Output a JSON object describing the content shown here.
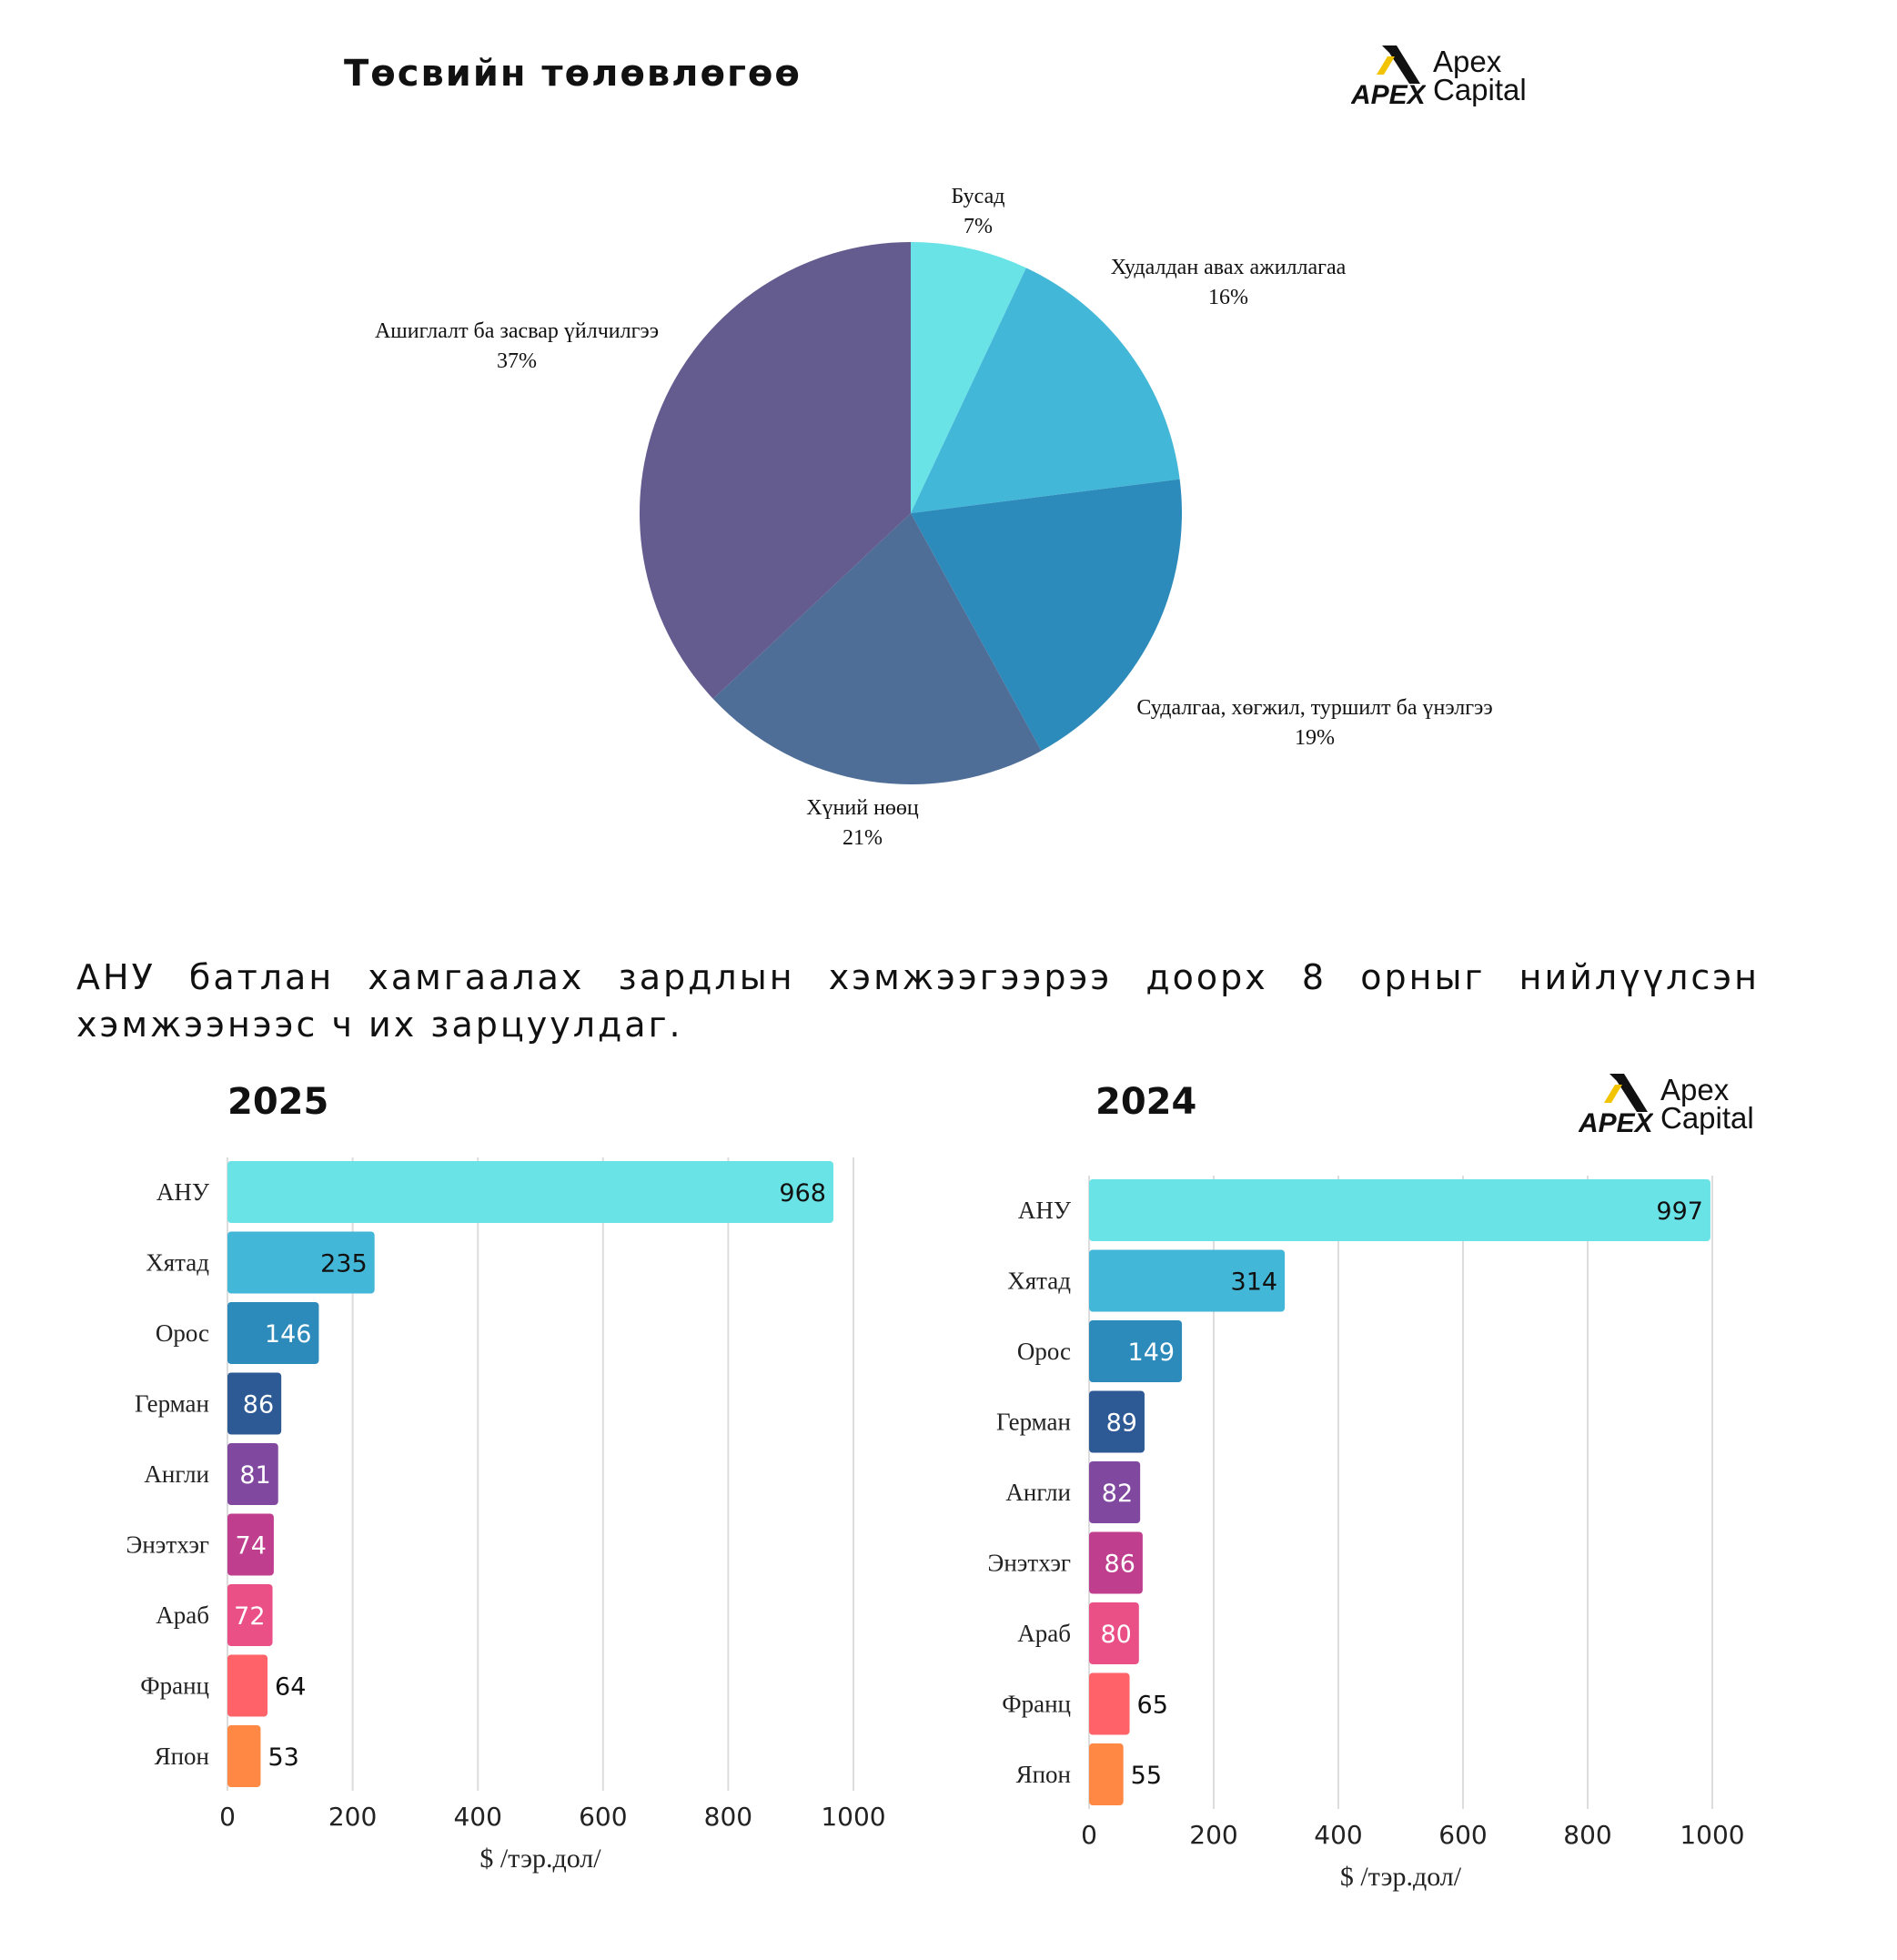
{
  "pie": {
    "title": "Төсвийн төлөвлөгөө"
  },
  "logo": {
    "line1": "Apex",
    "line2": "Capital",
    "accent": "#f2c400"
  },
  "statement": "АНУ батлан хамгаалах зардлын хэмжээгээрээ доорх 8 орныг нийлүүлсэн хэмжээнээс ч их зарцуулдаг.",
  "chart_data": [
    {
      "type": "pie",
      "title": "Төсвийн төлөвлөгөө",
      "slices": [
        {
          "label": "Бусад",
          "value": 7,
          "pct_label": "7%",
          "color": "#6ae3e7"
        },
        {
          "label": "Худалдан авах ажиллагаа",
          "value": 16,
          "pct_label": "16%",
          "color": "#43b7d7"
        },
        {
          "label": "Судалгаа, хөгжил, туршилт ба үнэлгээ",
          "value": 19,
          "pct_label": "19%",
          "color": "#2d8bbb"
        },
        {
          "label": "Хүний нөөц",
          "value": 21,
          "pct_label": "21%",
          "color": "#4e6e98"
        },
        {
          "label": "Ашиглалт ба засвар үйлчилгээ",
          "value": 37,
          "pct_label": "37%",
          "color": "#645b8e"
        }
      ]
    },
    {
      "type": "bar",
      "orientation": "horizontal",
      "title": "2025",
      "xlabel": "$ /тэр.дол/",
      "xlim": [
        0,
        1000
      ],
      "xticks": [
        0,
        200,
        400,
        600,
        800,
        1000
      ],
      "categories": [
        "АНУ",
        "Хятад",
        "Орос",
        "Герман",
        "Англи",
        "Энэтхэг",
        "Араб",
        "Франц",
        "Япон"
      ],
      "values": [
        968,
        235,
        146,
        86,
        81,
        74,
        72,
        64,
        53
      ],
      "colors": [
        "#6ae3e7",
        "#43b7d7",
        "#2d8bbb",
        "#2d5a94",
        "#8148a0",
        "#c03e8e",
        "#ea4f86",
        "#ff6268",
        "#ff8845"
      ],
      "value_label_colors": [
        "#111111",
        "#111111",
        "#ffffff",
        "#ffffff",
        "#ffffff",
        "#ffffff",
        "#ffffff",
        "#111111",
        "#111111"
      ],
      "grid": true
    },
    {
      "type": "bar",
      "orientation": "horizontal",
      "title": "2024",
      "xlabel": "$ /тэр.дол/",
      "xlim": [
        0,
        1000
      ],
      "xticks": [
        0,
        200,
        400,
        600,
        800,
        1000
      ],
      "categories": [
        "АНУ",
        "Хятад",
        "Орос",
        "Герман",
        "Англи",
        "Энэтхэг",
        "Араб",
        "Франц",
        "Япон"
      ],
      "values": [
        997,
        314,
        149,
        89,
        82,
        86,
        80,
        65,
        55
      ],
      "colors": [
        "#6ae3e7",
        "#43b7d7",
        "#2d8bbb",
        "#2d5a94",
        "#8148a0",
        "#c03e8e",
        "#ea4f86",
        "#ff6268",
        "#ff8845"
      ],
      "value_label_colors": [
        "#111111",
        "#111111",
        "#ffffff",
        "#ffffff",
        "#ffffff",
        "#ffffff",
        "#ffffff",
        "#111111",
        "#111111"
      ],
      "grid": true
    }
  ]
}
